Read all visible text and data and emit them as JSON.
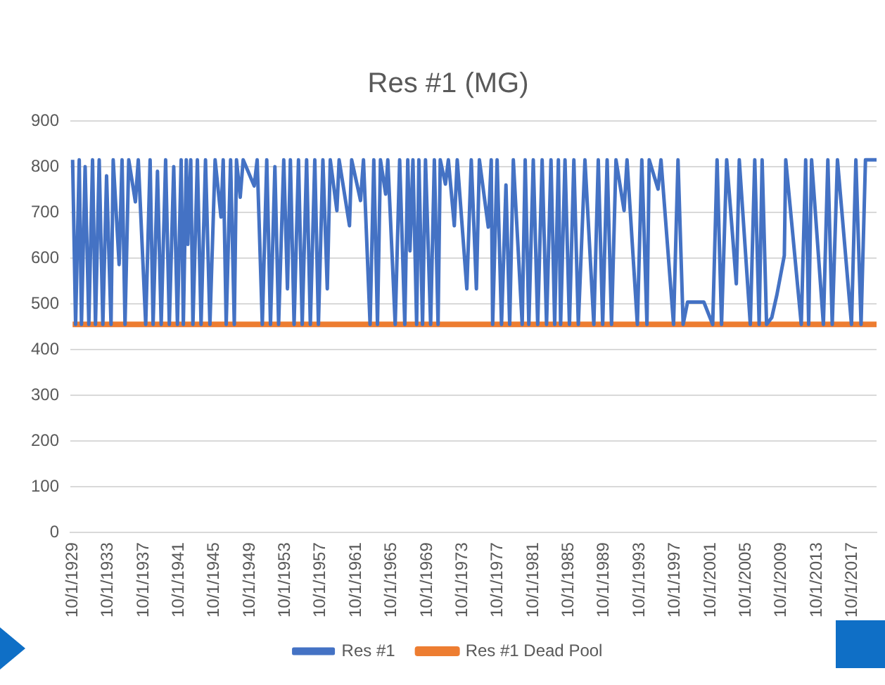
{
  "chart_data": {
    "type": "line",
    "title": "Res #1 (MG)",
    "series": [
      {
        "name": "Res #1",
        "color": "#4472c4",
        "x": [
          "1929-10",
          "1930-02",
          "1930-07",
          "1930-10",
          "1931-03",
          "1931-08",
          "1932-01",
          "1932-05",
          "1932-10",
          "1933-03",
          "1933-08",
          "1934-02",
          "1934-05",
          "1935-01",
          "1935-05",
          "1935-09",
          "1936-02",
          "1936-11",
          "1937-03",
          "1938-01",
          "1938-07",
          "1938-11",
          "1939-05",
          "1939-10",
          "1940-04",
          "1940-09",
          "1941-03",
          "1941-08",
          "1942-01",
          "1942-04",
          "1942-08",
          "1942-10",
          "1943-02",
          "1943-05",
          "1943-11",
          "1944-04",
          "1944-10",
          "1945-04",
          "1945-11",
          "1946-07",
          "1946-10",
          "1947-02",
          "1947-08",
          "1948-01",
          "1948-04",
          "1948-09",
          "1949-01",
          "1950-04",
          "1950-08",
          "1951-03",
          "1951-09",
          "1952-02",
          "1952-08",
          "1953-01",
          "1953-08",
          "1954-01",
          "1954-05",
          "1954-10",
          "1955-04",
          "1955-09",
          "1956-03",
          "1956-08",
          "1957-02",
          "1957-07",
          "1958-01",
          "1958-07",
          "1958-11",
          "1959-08",
          "1959-11",
          "1961-01",
          "1961-04",
          "1962-04",
          "1962-08",
          "1963-05",
          "1963-10",
          "1964-03",
          "1964-07",
          "1965-02",
          "1965-05",
          "1966-03",
          "1966-09",
          "1967-04",
          "1967-08",
          "1967-11",
          "1968-03",
          "1968-08",
          "1968-11",
          "1969-04",
          "1969-08",
          "1970-03",
          "1970-08",
          "1971-01",
          "1971-04",
          "1971-11",
          "1972-03",
          "1972-11",
          "1973-03",
          "1974-04",
          "1974-10",
          "1975-05",
          "1975-09",
          "1976-09",
          "1977-01",
          "1977-03",
          "1977-09",
          "1978-03",
          "1978-09",
          "1979-02",
          "1979-07",
          "1980-07",
          "1980-11",
          "1981-04",
          "1981-10",
          "1982-04",
          "1982-10",
          "1983-04",
          "1983-10",
          "1984-03",
          "1984-08",
          "1984-11",
          "1985-05",
          "1985-11",
          "1986-05",
          "1986-11",
          "1987-08",
          "1988-08",
          "1989-02",
          "1989-08",
          "1990-02",
          "1990-08",
          "1991-02",
          "1992-01",
          "1992-05",
          "1993-07",
          "1994-01",
          "1994-08",
          "1994-11",
          "1995-11",
          "1996-03",
          "1997-08",
          "1998-02",
          "1998-09",
          "1999-03",
          "2000-01",
          "2001-01",
          "2002-01",
          "2002-07",
          "2003-01",
          "2003-08",
          "2004-09",
          "2005-01",
          "2006-04",
          "2006-10",
          "2007-04",
          "2007-08",
          "2008-02",
          "2008-09",
          "2009-04",
          "2010-02",
          "2010-04",
          "2012-01",
          "2012-07",
          "2012-11",
          "2013-03",
          "2014-07",
          "2015-01",
          "2015-07",
          "2016-02",
          "2017-09",
          "2018-03",
          "2018-10",
          "2019-04",
          "2020-07"
        ],
        "values": [
          815,
          455,
          815,
          455,
          800,
          455,
          815,
          455,
          815,
          455,
          780,
          455,
          815,
          586,
          815,
          455,
          815,
          723,
          815,
          455,
          815,
          455,
          790,
          455,
          815,
          455,
          800,
          455,
          815,
          455,
          815,
          630,
          815,
          455,
          815,
          455,
          815,
          455,
          815,
          690,
          815,
          455,
          815,
          455,
          815,
          733,
          815,
          758,
          815,
          455,
          815,
          455,
          800,
          455,
          815,
          533,
          815,
          455,
          815,
          455,
          815,
          455,
          815,
          455,
          815,
          533,
          815,
          704,
          815,
          671,
          815,
          726,
          815,
          455,
          815,
          455,
          815,
          740,
          815,
          455,
          815,
          455,
          815,
          616,
          815,
          455,
          815,
          455,
          815,
          455,
          815,
          455,
          815,
          762,
          815,
          671,
          815,
          533,
          815,
          533,
          815,
          668,
          815,
          455,
          815,
          455,
          760,
          455,
          815,
          455,
          815,
          455,
          815,
          455,
          815,
          455,
          815,
          455,
          815,
          455,
          815,
          455,
          815,
          455,
          815,
          455,
          815,
          455,
          815,
          455,
          815,
          704,
          815,
          455,
          815,
          455,
          815,
          751,
          815,
          455,
          815,
          455,
          504,
          504,
          504,
          455,
          815,
          455,
          815,
          544,
          815,
          455,
          815,
          455,
          815,
          455,
          470,
          520,
          606,
          815,
          455,
          815,
          455,
          815,
          455,
          815,
          455,
          815,
          455,
          815,
          455,
          815,
          815
        ]
      },
      {
        "name": "Res #1 Dead Pool",
        "color": "#ed7d31",
        "x": [
          "1929-10",
          "2020-07"
        ],
        "values": [
          455,
          455
        ]
      }
    ],
    "xlim": [
      "1929-07",
      "2020-07"
    ],
    "xticks": [
      {
        "value": "1929-10-01",
        "label": "10/1/1929"
      },
      {
        "value": "1933-10-01",
        "label": "10/1/1933"
      },
      {
        "value": "1937-10-01",
        "label": "10/1/1937"
      },
      {
        "value": "1941-10-01",
        "label": "10/1/1941"
      },
      {
        "value": "1945-10-01",
        "label": "10/1/1945"
      },
      {
        "value": "1949-10-01",
        "label": "10/1/1949"
      },
      {
        "value": "1953-10-01",
        "label": "10/1/1953"
      },
      {
        "value": "1957-10-01",
        "label": "10/1/1957"
      },
      {
        "value": "1961-10-01",
        "label": "10/1/1961"
      },
      {
        "value": "1965-10-01",
        "label": "10/1/1965"
      },
      {
        "value": "1969-10-01",
        "label": "10/1/1969"
      },
      {
        "value": "1973-10-01",
        "label": "10/1/1973"
      },
      {
        "value": "1977-10-01",
        "label": "10/1/1977"
      },
      {
        "value": "1981-10-01",
        "label": "10/1/1981"
      },
      {
        "value": "1985-10-01",
        "label": "10/1/1985"
      },
      {
        "value": "1989-10-01",
        "label": "10/1/1989"
      },
      {
        "value": "1993-10-01",
        "label": "10/1/1993"
      },
      {
        "value": "1997-10-01",
        "label": "10/1/1997"
      },
      {
        "value": "2001-10-01",
        "label": "10/1/2001"
      },
      {
        "value": "2005-10-01",
        "label": "10/1/2005"
      },
      {
        "value": "2009-10-01",
        "label": "10/1/2009"
      },
      {
        "value": "2013-10-01",
        "label": "10/1/2013"
      },
      {
        "value": "2017-10-01",
        "label": "10/1/2017"
      }
    ],
    "ylim": [
      0,
      900
    ],
    "yticks": [
      0,
      100,
      200,
      300,
      400,
      500,
      600,
      700,
      800,
      900
    ],
    "grid": "y",
    "legend": "bottom",
    "marker": "none",
    "line_style": "solid"
  }
}
